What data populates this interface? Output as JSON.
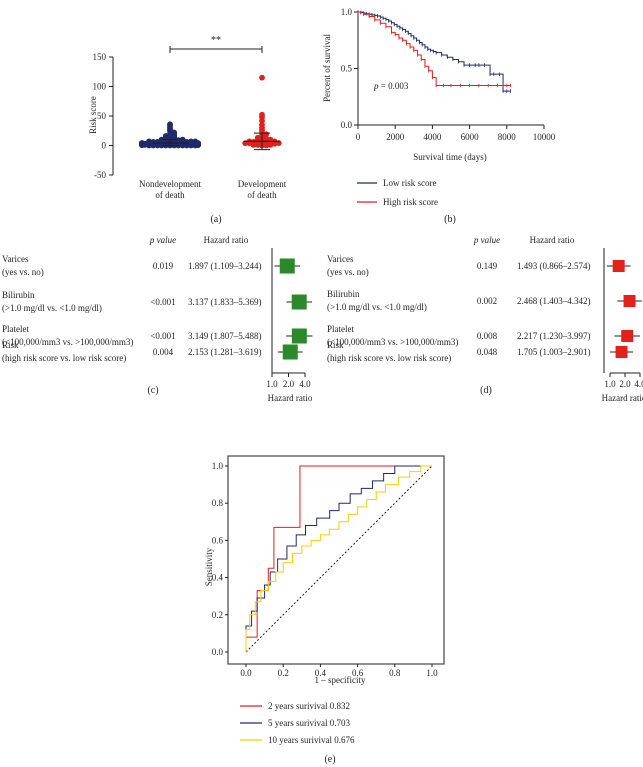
{
  "panels": {
    "a": "(a)",
    "b": "(b)",
    "c": "(c)",
    "d": "(d)",
    "e": "(e)"
  },
  "colors": {
    "navy": "#1f2a6b",
    "red": "#e2211c",
    "forest_green": "#2a8a2a",
    "yellow": "#f5d000",
    "black": "#231f20"
  },
  "chart_data": [
    {
      "id": "a",
      "type": "scatter",
      "title": "",
      "ylabel": "Risk score",
      "yticks": [
        -50,
        0,
        50,
        100,
        150
      ],
      "ylim": [
        -50,
        150
      ],
      "categories": [
        "Nondevelopment\nof death",
        "Development\nof death"
      ],
      "significance": "**",
      "groups": [
        {
          "name": "Nondevelopment of death",
          "color": "#1f2a6b",
          "mean": 4,
          "sd_low": 0,
          "sd_high": 10,
          "values": [
            0,
            0,
            0,
            0,
            0,
            0,
            0,
            0,
            0,
            0,
            0,
            0,
            1,
            1,
            1,
            1,
            1,
            1,
            1,
            1,
            1,
            1,
            1,
            1,
            2,
            2,
            2,
            2,
            2,
            2,
            2,
            2,
            2,
            2,
            3,
            3,
            3,
            3,
            3,
            3,
            3,
            3,
            4,
            4,
            4,
            4,
            4,
            4,
            5,
            5,
            5,
            5,
            5,
            6,
            6,
            6,
            6,
            7,
            7,
            7,
            8,
            8,
            9,
            9,
            10,
            10,
            11,
            12,
            13,
            14,
            15,
            16,
            17,
            18,
            20,
            22,
            25,
            27,
            30,
            34,
            36
          ]
        },
        {
          "name": "Development of death",
          "color": "#e2211c",
          "mean": 7,
          "sd_low": -7,
          "sd_high": 21,
          "values": [
            0,
            0,
            1,
            1,
            1,
            2,
            2,
            2,
            3,
            3,
            3,
            4,
            4,
            4,
            5,
            5,
            5,
            6,
            6,
            7,
            7,
            8,
            8,
            9,
            10,
            11,
            12,
            13,
            15,
            17,
            19,
            22,
            26,
            30,
            35,
            42,
            48,
            52,
            115
          ]
        }
      ]
    },
    {
      "id": "b",
      "type": "line",
      "subtype": "kaplan-meier",
      "xlabel": "Survival time (days)",
      "ylabel": "Percent of survival",
      "xticks": [
        0,
        2000,
        4000,
        6000,
        8000,
        10000
      ],
      "yticks": [
        0.0,
        0.5,
        1.0
      ],
      "ytick_labels": [
        "0.0",
        "0.5",
        "1.0"
      ],
      "xlim": [
        0,
        10000
      ],
      "ylim": [
        0,
        1.0
      ],
      "annotation": "p = 0.003",
      "annotation_italic": "p",
      "annotation_rest": " = 0.003",
      "series": [
        {
          "name": "Low risk score",
          "color": "#1f2a6b",
          "x": [
            0,
            150,
            300,
            450,
            600,
            750,
            900,
            1050,
            1200,
            1350,
            1500,
            1650,
            1800,
            1950,
            2100,
            2250,
            2400,
            2550,
            2700,
            2850,
            3000,
            3150,
            3300,
            3450,
            3600,
            3750,
            3900,
            4050,
            4200,
            4500,
            4800,
            5100,
            5400,
            5700,
            6000,
            6300,
            6500,
            6800,
            7100,
            7300,
            7600,
            7800,
            8000,
            8200
          ],
          "y": [
            1.0,
            0.995,
            0.99,
            0.985,
            0.98,
            0.975,
            0.97,
            0.965,
            0.955,
            0.945,
            0.935,
            0.92,
            0.905,
            0.89,
            0.875,
            0.86,
            0.845,
            0.83,
            0.81,
            0.79,
            0.77,
            0.75,
            0.73,
            0.71,
            0.69,
            0.67,
            0.66,
            0.65,
            0.64,
            0.62,
            0.6,
            0.58,
            0.56,
            0.53,
            0.53,
            0.53,
            0.53,
            0.53,
            0.45,
            0.45,
            0.45,
            0.3,
            0.3,
            0.3
          ]
        },
        {
          "name": "High risk score",
          "color": "#e2211c",
          "x": [
            0,
            300,
            600,
            900,
            1200,
            1500,
            1800,
            2000,
            2200,
            2400,
            2600,
            2800,
            3000,
            3200,
            3400,
            3600,
            3800,
            4000,
            4200,
            4600,
            5000,
            5500,
            6000,
            6500,
            7000,
            7500,
            7800,
            8000,
            8200
          ],
          "y": [
            1.0,
            0.98,
            0.96,
            0.93,
            0.9,
            0.87,
            0.82,
            0.8,
            0.77,
            0.75,
            0.72,
            0.69,
            0.66,
            0.62,
            0.58,
            0.52,
            0.48,
            0.42,
            0.35,
            0.35,
            0.35,
            0.35,
            0.35,
            0.35,
            0.35,
            0.35,
            0.35,
            0.35,
            0.35
          ]
        }
      ]
    },
    {
      "id": "c",
      "type": "forest",
      "header_p": "p value",
      "header_hr": "Hazard ratio",
      "xlabel": "Hazard ratio",
      "xticks": [
        1.0,
        2.0,
        4.0
      ],
      "xtick_labels": [
        "1.0",
        "2.0",
        "4.0"
      ],
      "color": "#2a8a2a",
      "rows": [
        {
          "label1": "Varices",
          "label2": "(yes vs. no)",
          "p": "0.019",
          "hr_text": "1.897 (1.109–3.244)",
          "hr": 1.897,
          "lo": 1.109,
          "hi": 3.244
        },
        {
          "label1": "Bilirubin",
          "label2": "(>1.0 mg/dl vs. <1.0 mg/dl)",
          "p": "<0.001",
          "hr_text": "3.137 (1.833–5.369)",
          "hr": 3.137,
          "lo": 1.833,
          "hi": 5.369
        },
        {
          "label1": "Platelet",
          "label2": "(<100,000/mm3 vs. >100,000/mm3)",
          "p": "<0.001",
          "hr_text": "3.149 (1.807–5.488)",
          "hr": 3.149,
          "lo": 1.807,
          "hi": 5.488
        },
        {
          "label1": "Risk",
          "label2": "(high risk score vs. low risk score)",
          "p": "0.004",
          "hr_text": "2.153 (1.281–3.619)",
          "hr": 2.153,
          "lo": 1.281,
          "hi": 3.619
        }
      ]
    },
    {
      "id": "d",
      "type": "forest",
      "header_p": "p value",
      "header_hr": "Hazard ratio",
      "xlabel": "Hazard ratio",
      "xticks": [
        1.0,
        2.0,
        4.0
      ],
      "xtick_labels": [
        "1.0",
        "2.0",
        "4.0"
      ],
      "color": "#e2211c",
      "rows": [
        {
          "label1": "Varices",
          "label2": "(yes vs. no)",
          "p": "0.149",
          "hr_text": "1.493 (0.866–2.574)",
          "hr": 1.493,
          "lo": 0.866,
          "hi": 2.574
        },
        {
          "label1": "Bilirubin",
          "label2": "(>1.0 mg/dl vs. <1.0 mg/dl)",
          "p": "0.002",
          "hr_text": "2.468 (1.403–4.342)",
          "hr": 2.468,
          "lo": 1.403,
          "hi": 4.342
        },
        {
          "label1": "Platelet",
          "label2": "(<100,000/mm3 vs. >100,000/mm3)",
          "p": "0.008",
          "hr_text": "2.217 (1.230–3.997)",
          "hr": 2.217,
          "lo": 1.23,
          "hi": 3.997
        },
        {
          "label1": "Risk",
          "label2": "(high risk score vs. low risk score)",
          "p": "0.048",
          "hr_text": "1.705 (1.003–2.901)",
          "hr": 1.705,
          "lo": 1.003,
          "hi": 2.901
        }
      ]
    },
    {
      "id": "e",
      "type": "line",
      "subtype": "roc",
      "xlabel": "1 – specificity",
      "ylabel": "Sensitivity",
      "xticks": [
        0.0,
        0.2,
        0.4,
        0.6,
        0.8,
        1.0
      ],
      "yticks": [
        0.0,
        0.2,
        0.4,
        0.6,
        0.8,
        1.0
      ],
      "tick_labels": [
        "0.0",
        "0.2",
        "0.4",
        "0.6",
        "0.8",
        "1.0"
      ],
      "xlim": [
        0,
        1
      ],
      "ylim": [
        0,
        1
      ],
      "series": [
        {
          "name": "2 years surivival 0.832",
          "color": "#e2211c",
          "x": [
            0,
            0,
            0.06,
            0.06,
            0.12,
            0.12,
            0.15,
            0.15,
            0.29,
            0.29,
            1.0
          ],
          "y": [
            0,
            0.08,
            0.08,
            0.33,
            0.33,
            0.45,
            0.45,
            0.67,
            0.67,
            1.0,
            1.0
          ]
        },
        {
          "name": "5 years surivival 0.703",
          "color": "#1f2a6b",
          "x": [
            0,
            0,
            0.03,
            0.03,
            0.06,
            0.06,
            0.1,
            0.1,
            0.13,
            0.13,
            0.17,
            0.17,
            0.22,
            0.22,
            0.27,
            0.27,
            0.32,
            0.32,
            0.38,
            0.38,
            0.45,
            0.45,
            0.5,
            0.5,
            0.56,
            0.56,
            0.62,
            0.62,
            0.68,
            0.68,
            0.74,
            0.74,
            0.8,
            0.8,
            1.0
          ],
          "y": [
            0,
            0.14,
            0.14,
            0.22,
            0.22,
            0.29,
            0.29,
            0.36,
            0.36,
            0.43,
            0.43,
            0.5,
            0.5,
            0.57,
            0.57,
            0.63,
            0.63,
            0.68,
            0.68,
            0.72,
            0.72,
            0.76,
            0.76,
            0.8,
            0.8,
            0.85,
            0.85,
            0.88,
            0.88,
            0.92,
            0.92,
            0.96,
            0.96,
            1.0,
            1.0
          ]
        },
        {
          "name": "10 years surivival 0.676",
          "color": "#f5d000",
          "x": [
            0,
            0,
            0.02,
            0.02,
            0.05,
            0.05,
            0.08,
            0.08,
            0.12,
            0.12,
            0.16,
            0.16,
            0.2,
            0.2,
            0.25,
            0.25,
            0.3,
            0.3,
            0.35,
            0.35,
            0.4,
            0.4,
            0.45,
            0.45,
            0.5,
            0.5,
            0.55,
            0.55,
            0.6,
            0.6,
            0.65,
            0.65,
            0.7,
            0.7,
            0.75,
            0.75,
            0.82,
            0.82,
            0.88,
            0.88,
            0.94,
            0.94,
            1.0
          ],
          "y": [
            0,
            0.12,
            0.12,
            0.2,
            0.2,
            0.27,
            0.27,
            0.33,
            0.33,
            0.38,
            0.38,
            0.43,
            0.43,
            0.48,
            0.48,
            0.53,
            0.53,
            0.57,
            0.57,
            0.6,
            0.6,
            0.63,
            0.63,
            0.66,
            0.66,
            0.7,
            0.7,
            0.74,
            0.74,
            0.78,
            0.78,
            0.82,
            0.82,
            0.86,
            0.86,
            0.9,
            0.9,
            0.94,
            0.94,
            0.97,
            0.97,
            1.0,
            1.0
          ]
        }
      ]
    }
  ]
}
